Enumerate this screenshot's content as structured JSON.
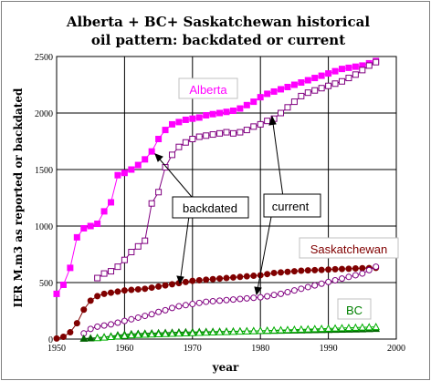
{
  "chart_data": {
    "type": "scatter",
    "title": [
      "Alberta + BC+ Saskatchewan historical",
      "oil pattern: backdated or current"
    ],
    "xlabel": "year",
    "ylabel": "IER M.m3 as reported or backdated",
    "xlim": [
      1950,
      2000
    ],
    "ylim": [
      0,
      2500
    ],
    "x_ticks": [
      "1950",
      "1960",
      "1970",
      "1980",
      "1990",
      "2000"
    ],
    "y_ticks": [
      "0",
      "500",
      "1000",
      "1500",
      "2000",
      "2500"
    ],
    "grid": true,
    "series": [
      {
        "name": "Alberta",
        "style": "backdated",
        "color": "#ff00ff",
        "marker": "filled-square",
        "x": [
          1950,
          1951,
          1952,
          1953,
          1954,
          1955,
          1956,
          1957,
          1958,
          1959,
          1960,
          1961,
          1962,
          1963,
          1964,
          1965,
          1966,
          1967,
          1968,
          1969,
          1970,
          1971,
          1972,
          1973,
          1974,
          1975,
          1976,
          1977,
          1978,
          1979,
          1980,
          1981,
          1982,
          1983,
          1984,
          1985,
          1986,
          1987,
          1988,
          1989,
          1990,
          1991,
          1992,
          1993,
          1994,
          1995,
          1996,
          1997
        ],
        "y": [
          400,
          480,
          630,
          900,
          980,
          1000,
          1020,
          1130,
          1210,
          1450,
          1470,
          1500,
          1540,
          1590,
          1660,
          1770,
          1850,
          1900,
          1920,
          1940,
          1950,
          1960,
          1980,
          1990,
          2000,
          2010,
          2020,
          2040,
          2070,
          2100,
          2140,
          2170,
          2190,
          2210,
          2230,
          2250,
          2270,
          2290,
          2310,
          2330,
          2350,
          2370,
          2390,
          2400,
          2410,
          2420,
          2440,
          2460
        ]
      },
      {
        "name": "Alberta",
        "style": "current",
        "color": "#800080",
        "marker": "open-square",
        "x": [
          1956,
          1957,
          1958,
          1959,
          1960,
          1961,
          1962,
          1963,
          1964,
          1965,
          1966,
          1967,
          1968,
          1969,
          1970,
          1971,
          1972,
          1973,
          1974,
          1975,
          1976,
          1977,
          1978,
          1979,
          1980,
          1981,
          1982,
          1983,
          1984,
          1985,
          1986,
          1987,
          1988,
          1989,
          1990,
          1991,
          1992,
          1993,
          1994,
          1995,
          1996,
          1997
        ],
        "y": [
          540,
          580,
          600,
          640,
          700,
          770,
          820,
          870,
          1200,
          1300,
          1520,
          1630,
          1700,
          1740,
          1770,
          1790,
          1800,
          1810,
          1820,
          1830,
          1820,
          1830,
          1850,
          1880,
          1900,
          1930,
          1950,
          2000,
          2050,
          2100,
          2150,
          2180,
          2200,
          2220,
          2240,
          2260,
          2280,
          2310,
          2340,
          2380,
          2420,
          2450
        ]
      },
      {
        "name": "Saskatchewan",
        "style": "backdated",
        "color": "#800000",
        "marker": "filled-circle",
        "x": [
          1950,
          1951,
          1952,
          1953,
          1954,
          1955,
          1956,
          1957,
          1958,
          1959,
          1960,
          1961,
          1962,
          1963,
          1964,
          1965,
          1966,
          1967,
          1968,
          1969,
          1970,
          1971,
          1972,
          1973,
          1974,
          1975,
          1976,
          1977,
          1978,
          1979,
          1980,
          1981,
          1982,
          1983,
          1984,
          1985,
          1986,
          1987,
          1988,
          1989,
          1990,
          1991,
          1992,
          1993,
          1994,
          1995,
          1996,
          1997
        ],
        "y": [
          5,
          20,
          60,
          140,
          260,
          340,
          380,
          400,
          410,
          420,
          430,
          435,
          440,
          445,
          455,
          465,
          475,
          485,
          495,
          505,
          515,
          520,
          525,
          530,
          535,
          540,
          545,
          550,
          555,
          560,
          565,
          575,
          585,
          590,
          595,
          600,
          605,
          608,
          610,
          612,
          615,
          618,
          620,
          622,
          625,
          627,
          628,
          630
        ]
      },
      {
        "name": "Saskatchewan",
        "style": "current",
        "color": "#800080",
        "marker": "open-circle",
        "x": [
          1954,
          1955,
          1956,
          1957,
          1958,
          1959,
          1960,
          1961,
          1962,
          1963,
          1964,
          1965,
          1966,
          1967,
          1968,
          1969,
          1970,
          1971,
          1972,
          1973,
          1974,
          1975,
          1976,
          1977,
          1978,
          1979,
          1980,
          1981,
          1982,
          1983,
          1984,
          1985,
          1986,
          1987,
          1988,
          1989,
          1990,
          1991,
          1992,
          1993,
          1994,
          1995,
          1996,
          1997
        ],
        "y": [
          50,
          90,
          110,
          120,
          130,
          145,
          160,
          175,
          190,
          205,
          220,
          240,
          255,
          275,
          290,
          300,
          310,
          320,
          330,
          335,
          340,
          345,
          350,
          355,
          360,
          365,
          370,
          378,
          390,
          400,
          415,
          430,
          445,
          460,
          475,
          490,
          505,
          520,
          535,
          550,
          565,
          580,
          610,
          640
        ]
      },
      {
        "name": "BC",
        "style": "backdated",
        "color": "#006400",
        "marker": "filled-triangle",
        "x": [
          1954,
          1955,
          1956,
          1957,
          1958,
          1959,
          1960,
          1961,
          1962,
          1963,
          1964,
          1965,
          1966,
          1967,
          1968,
          1969,
          1970,
          1971,
          1972,
          1973,
          1974,
          1975,
          1976,
          1977,
          1978,
          1979,
          1980,
          1981,
          1982,
          1983,
          1984,
          1985,
          1986,
          1987,
          1988,
          1989,
          1990,
          1991,
          1992,
          1993,
          1994,
          1995,
          1996,
          1997
        ],
        "y": [
          5,
          8,
          12,
          18,
          25,
          35,
          40,
          45,
          48,
          50,
          52,
          54,
          56,
          58,
          60,
          62,
          63,
          64,
          65,
          66,
          67,
          68,
          69,
          70,
          71,
          72,
          73,
          74,
          75,
          76,
          77,
          78,
          79,
          80,
          81,
          82,
          83,
          84,
          85,
          86,
          87,
          88,
          90,
          92
        ]
      },
      {
        "name": "BC",
        "style": "current",
        "color": "#00b000",
        "marker": "open-triangle",
        "x": [
          1956,
          1957,
          1958,
          1959,
          1960,
          1961,
          1962,
          1963,
          1964,
          1965,
          1966,
          1967,
          1968,
          1969,
          1970,
          1971,
          1972,
          1973,
          1974,
          1975,
          1976,
          1977,
          1978,
          1979,
          1980,
          1981,
          1982,
          1983,
          1984,
          1985,
          1986,
          1987,
          1988,
          1989,
          1990,
          1991,
          1992,
          1993,
          1994,
          1995,
          1996,
          1997
        ],
        "y": [
          10,
          15,
          20,
          25,
          30,
          35,
          38,
          40,
          42,
          44,
          46,
          48,
          50,
          52,
          54,
          56,
          58,
          60,
          62,
          64,
          66,
          68,
          70,
          72,
          74,
          76,
          78,
          80,
          82,
          84,
          86,
          88,
          90,
          92,
          94,
          96,
          98,
          100,
          102,
          104,
          106,
          108
        ]
      }
    ],
    "annotations": [
      {
        "label": "Alberta",
        "color": "#ff00ff"
      },
      {
        "label": "Saskatchewan",
        "color": "#800000"
      },
      {
        "label": "BC",
        "color": "#008000"
      },
      {
        "label": "backdated"
      },
      {
        "label": "current"
      }
    ]
  }
}
